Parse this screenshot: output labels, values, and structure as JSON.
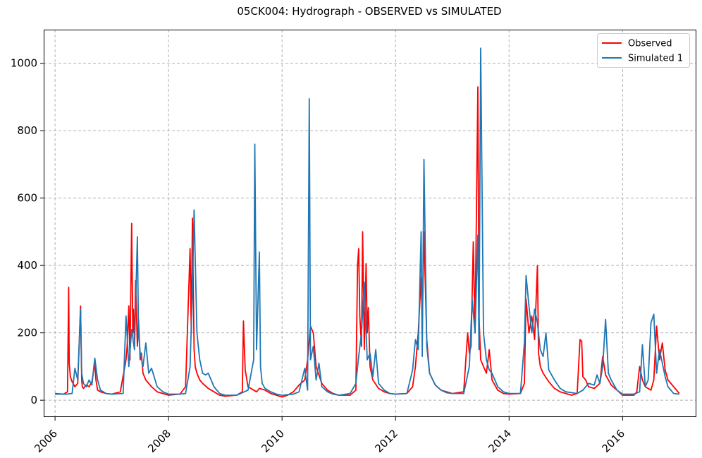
{
  "chart_data": {
    "type": "line",
    "title": "05CK004: Hydrograph - OBSERVED vs SIMULATED",
    "xlabel": "",
    "ylabel": "",
    "xlim": [
      2005.8,
      2017.3
    ],
    "ylim": [
      -50,
      1100
    ],
    "x_ticks": [
      2006,
      2008,
      2010,
      2012,
      2014,
      2016
    ],
    "x_tick_labels": [
      "2006",
      "2008",
      "2010",
      "2012",
      "2014",
      "2016"
    ],
    "y_ticks": [
      0,
      200,
      400,
      600,
      800,
      1000
    ],
    "y_tick_labels": [
      "0",
      "200",
      "400",
      "600",
      "800",
      "1000"
    ],
    "grid": true,
    "legend_position": "top-right",
    "series": [
      {
        "name": "Observed",
        "color": "#ff0000",
        "x": [
          2006.0,
          2006.15,
          2006.22,
          2006.24,
          2006.25,
          2006.27,
          2006.3,
          2006.35,
          2006.4,
          2006.45,
          2006.47,
          2006.48,
          2006.5,
          2006.55,
          2006.6,
          2006.65,
          2006.7,
          2006.72,
          2006.75,
          2006.8,
          2006.9,
          2007.0,
          2007.15,
          2007.25,
          2007.27,
          2007.3,
          2007.32,
          2007.35,
          2007.37,
          2007.38,
          2007.4,
          2007.42,
          2007.45,
          2007.47,
          2007.5,
          2007.52,
          2007.55,
          2007.6,
          2007.7,
          2007.8,
          2007.9,
          2008.0,
          2008.2,
          2008.3,
          2008.38,
          2008.4,
          2008.42,
          2008.45,
          2008.47,
          2008.5,
          2008.55,
          2008.6,
          2008.7,
          2008.8,
          2008.9,
          2009.0,
          2009.2,
          2009.3,
          2009.32,
          2009.35,
          2009.4,
          2009.5,
          2009.55,
          2009.6,
          2009.7,
          2009.8,
          2009.9,
          2009.95,
          2010.0,
          2010.1,
          2010.2,
          2010.3,
          2010.4,
          2010.45,
          2010.5,
          2010.55,
          2010.6,
          2010.7,
          2010.8,
          2010.9,
          2011.0,
          2011.2,
          2011.3,
          2011.33,
          2011.35,
          2011.37,
          2011.4,
          2011.42,
          2011.45,
          2011.48,
          2011.5,
          2011.52,
          2011.55,
          2011.6,
          2011.7,
          2011.8,
          2011.9,
          2012.0,
          2012.2,
          2012.3,
          2012.35,
          2012.4,
          2012.45,
          2012.47,
          2012.5,
          2012.55,
          2012.6,
          2012.7,
          2012.8,
          2012.9,
          2013.0,
          2013.2,
          2013.27,
          2013.3,
          2013.33,
          2013.37,
          2013.4,
          2013.45,
          2013.47,
          2013.5,
          2013.55,
          2013.6,
          2013.65,
          2013.7,
          2013.8,
          2013.9,
          2014.0,
          2014.2,
          2014.27,
          2014.3,
          2014.35,
          2014.4,
          2014.45,
          2014.5,
          2014.52,
          2014.55,
          2014.6,
          2014.7,
          2014.8,
          2014.9,
          2015.0,
          2015.1,
          2015.2,
          2015.25,
          2015.28,
          2015.3,
          2015.35,
          2015.4,
          2015.5,
          2015.6,
          2015.65,
          2015.7,
          2015.8,
          2015.9,
          2016.0,
          2016.2,
          2016.25,
          2016.3,
          2016.35,
          2016.4,
          2016.5,
          2016.55,
          2016.6,
          2016.65,
          2016.7,
          2016.75,
          2016.8,
          2016.9,
          2017.0
        ],
        "y": [
          20,
          18,
          25,
          335,
          110,
          70,
          55,
          40,
          50,
          280,
          60,
          40,
          35,
          45,
          40,
          55,
          110,
          60,
          30,
          25,
          20,
          18,
          25,
          120,
          160,
          280,
          120,
          525,
          200,
          270,
          180,
          355,
          160,
          240,
          120,
          140,
          80,
          60,
          40,
          25,
          20,
          15,
          18,
          40,
          450,
          200,
          540,
          150,
          100,
          80,
          60,
          50,
          35,
          25,
          15,
          12,
          15,
          25,
          235,
          90,
          40,
          30,
          25,
          35,
          30,
          20,
          15,
          12,
          10,
          15,
          25,
          45,
          60,
          120,
          220,
          200,
          100,
          50,
          30,
          20,
          15,
          15,
          30,
          400,
          450,
          250,
          160,
          500,
          150,
          405,
          200,
          275,
          100,
          60,
          35,
          25,
          20,
          18,
          20,
          40,
          100,
          200,
          365,
          230,
          500,
          180,
          80,
          45,
          30,
          25,
          20,
          25,
          200,
          140,
          160,
          470,
          200,
          930,
          250,
          120,
          100,
          80,
          150,
          60,
          30,
          20,
          18,
          20,
          50,
          300,
          200,
          250,
          180,
          400,
          140,
          100,
          80,
          55,
          35,
          25,
          20,
          15,
          20,
          180,
          175,
          70,
          60,
          40,
          35,
          50,
          130,
          75,
          45,
          30,
          15,
          15,
          25,
          100,
          60,
          40,
          30,
          60,
          220,
          120,
          170,
          90,
          60,
          40,
          20
        ]
      },
      {
        "name": "Simulated 1",
        "color": "#1f77b4",
        "x": [
          2006.0,
          2006.2,
          2006.3,
          2006.35,
          2006.4,
          2006.45,
          2006.47,
          2006.5,
          2006.55,
          2006.6,
          2006.65,
          2006.7,
          2006.75,
          2006.8,
          2006.9,
          2007.0,
          2007.2,
          2007.25,
          2007.3,
          2007.35,
          2007.4,
          2007.45,
          2007.47,
          2007.5,
          2007.55,
          2007.6,
          2007.65,
          2007.7,
          2007.8,
          2007.9,
          2008.0,
          2008.2,
          2008.3,
          2008.38,
          2008.42,
          2008.45,
          2008.5,
          2008.55,
          2008.6,
          2008.65,
          2008.7,
          2008.8,
          2008.9,
          2009.0,
          2009.2,
          2009.4,
          2009.5,
          2009.52,
          2009.55,
          2009.6,
          2009.62,
          2009.65,
          2009.7,
          2009.8,
          2009.9,
          2010.0,
          2010.2,
          2010.3,
          2010.4,
          2010.45,
          2010.48,
          2010.5,
          2010.55,
          2010.6,
          2010.65,
          2010.7,
          2010.8,
          2010.9,
          2011.0,
          2011.2,
          2011.3,
          2011.35,
          2011.4,
          2011.45,
          2011.5,
          2011.55,
          2011.6,
          2011.65,
          2011.7,
          2011.8,
          2011.9,
          2012.0,
          2012.2,
          2012.3,
          2012.35,
          2012.4,
          2012.45,
          2012.47,
          2012.5,
          2012.55,
          2012.6,
          2012.7,
          2012.8,
          2012.9,
          2013.0,
          2013.2,
          2013.3,
          2013.35,
          2013.4,
          2013.45,
          2013.47,
          2013.5,
          2013.55,
          2013.6,
          2013.65,
          2013.7,
          2013.8,
          2013.9,
          2014.0,
          2014.2,
          2014.27,
          2014.3,
          2014.35,
          2014.4,
          2014.45,
          2014.5,
          2014.55,
          2014.6,
          2014.65,
          2014.7,
          2014.8,
          2014.9,
          2015.0,
          2015.2,
          2015.3,
          2015.4,
          2015.5,
          2015.55,
          2015.6,
          2015.65,
          2015.7,
          2015.75,
          2015.8,
          2015.9,
          2016.0,
          2016.2,
          2016.3,
          2016.35,
          2016.4,
          2016.45,
          2016.5,
          2016.55,
          2016.6,
          2016.65,
          2016.7,
          2016.75,
          2016.8,
          2016.9,
          2017.0
        ],
        "y": [
          18,
          18,
          20,
          95,
          60,
          270,
          80,
          50,
          40,
          60,
          45,
          125,
          60,
          30,
          20,
          18,
          20,
          250,
          100,
          210,
          150,
          485,
          200,
          140,
          100,
          170,
          80,
          95,
          40,
          25,
          18,
          18,
          20,
          100,
          330,
          565,
          200,
          120,
          80,
          75,
          80,
          40,
          20,
          15,
          15,
          30,
          120,
          760,
          150,
          440,
          100,
          50,
          35,
          25,
          18,
          15,
          18,
          25,
          95,
          30,
          895,
          120,
          160,
          60,
          110,
          40,
          25,
          18,
          15,
          20,
          50,
          130,
          200,
          350,
          120,
          140,
          70,
          150,
          50,
          30,
          20,
          18,
          20,
          90,
          180,
          150,
          500,
          130,
          715,
          160,
          80,
          45,
          30,
          22,
          20,
          20,
          100,
          300,
          200,
          490,
          150,
          1045,
          200,
          120,
          90,
          80,
          40,
          25,
          20,
          20,
          170,
          370,
          280,
          200,
          270,
          230,
          150,
          130,
          200,
          90,
          60,
          35,
          25,
          20,
          30,
          50,
          45,
          75,
          50,
          100,
          240,
          80,
          60,
          30,
          18,
          18,
          25,
          165,
          40,
          60,
          230,
          255,
          80,
          150,
          110,
          70,
          40,
          20,
          18
        ]
      }
    ]
  }
}
